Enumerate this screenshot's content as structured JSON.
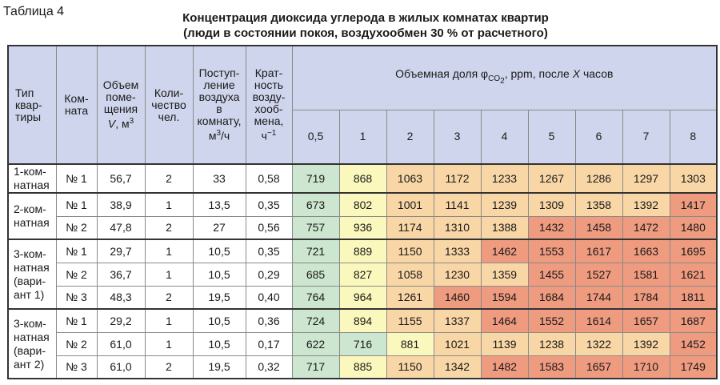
{
  "table_label": "Таблица 4",
  "title_line1": "Концентрация диоксида углерода в жилых комнатах квартир",
  "title_line2": "(люди в состоянии покоя, воздухообмен 30 % от расчетного)",
  "headers": {
    "type": "Тип квар-тиры",
    "room": "Ком-ната",
    "volume": "Объем поме-щения V, м³",
    "people": "Коли-чество чел.",
    "air": "Поступ-ление воздуха в комнату, м³/ч",
    "rate": "Крат-ность возду-хооб-мена, ч⁻¹",
    "fraction": "Объемная доля φCO₂, ppm, после X часов",
    "hours": [
      "0,5",
      "1",
      "2",
      "3",
      "4",
      "5",
      "6",
      "7",
      "8"
    ]
  },
  "groups": [
    {
      "type": "1-ком-натная",
      "rows": [
        {
          "room": "№ 1",
          "volume": "56,7",
          "people": "2",
          "air": "33",
          "rate": "0,58",
          "values": [
            "719",
            "868",
            "1063",
            "1172",
            "1233",
            "1267",
            "1286",
            "1297",
            "1303"
          ],
          "colors": [
            "green",
            "yellow",
            "lorange",
            "lorange",
            "lorange",
            "lorange",
            "lorange",
            "lorange",
            "lorange"
          ]
        }
      ]
    },
    {
      "type": "2-ком-натная",
      "rows": [
        {
          "room": "№ 1",
          "volume": "38,9",
          "people": "1",
          "air": "13,5",
          "rate": "0,35",
          "values": [
            "673",
            "802",
            "1001",
            "1141",
            "1239",
            "1309",
            "1358",
            "1392",
            "1417"
          ],
          "colors": [
            "green",
            "yellow",
            "lorange",
            "lorange",
            "lorange",
            "lorange",
            "lorange",
            "lorange",
            "red"
          ]
        },
        {
          "room": "№ 2",
          "volume": "47,8",
          "people": "2",
          "air": "27",
          "rate": "0,56",
          "values": [
            "757",
            "936",
            "1174",
            "1310",
            "1388",
            "1432",
            "1458",
            "1472",
            "1480"
          ],
          "colors": [
            "green",
            "yellow",
            "lorange",
            "lorange",
            "lorange",
            "red",
            "red",
            "red",
            "red"
          ]
        }
      ]
    },
    {
      "type": "3-ком-натная (вари-ант 1)",
      "rows": [
        {
          "room": "№ 1",
          "volume": "29,7",
          "people": "1",
          "air": "10,5",
          "rate": "0,35",
          "values": [
            "721",
            "889",
            "1150",
            "1333",
            "1462",
            "1553",
            "1617",
            "1663",
            "1695"
          ],
          "colors": [
            "green",
            "yellow",
            "lorange",
            "lorange",
            "red",
            "red",
            "red",
            "red",
            "red"
          ]
        },
        {
          "room": "№ 2",
          "volume": "36,7",
          "people": "1",
          "air": "10,5",
          "rate": "0,29",
          "values": [
            "685",
            "827",
            "1058",
            "1230",
            "1359",
            "1455",
            "1527",
            "1581",
            "1621"
          ],
          "colors": [
            "green",
            "yellow",
            "lorange",
            "lorange",
            "lorange",
            "red",
            "red",
            "red",
            "red"
          ]
        },
        {
          "room": "№ 3",
          "volume": "48,3",
          "people": "2",
          "air": "19,5",
          "rate": "0,40",
          "values": [
            "764",
            "964",
            "1261",
            "1460",
            "1594",
            "1684",
            "1744",
            "1784",
            "1811"
          ],
          "colors": [
            "green",
            "yellow",
            "lorange",
            "red",
            "red",
            "red",
            "red",
            "red",
            "red"
          ]
        }
      ]
    },
    {
      "type": "3-ком-натная (вари-ант 2)",
      "rows": [
        {
          "room": "№ 1",
          "volume": "29,2",
          "people": "1",
          "air": "10,5",
          "rate": "0,36",
          "values": [
            "724",
            "894",
            "1155",
            "1337",
            "1464",
            "1552",
            "1614",
            "1657",
            "1687"
          ],
          "colors": [
            "green",
            "yellow",
            "lorange",
            "lorange",
            "red",
            "red",
            "red",
            "red",
            "red"
          ]
        },
        {
          "room": "№ 2",
          "volume": "61,0",
          "people": "1",
          "air": "10,5",
          "rate": "0,17",
          "values": [
            "622",
            "716",
            "881",
            "1021",
            "1139",
            "1238",
            "1322",
            "1392",
            "1452"
          ],
          "colors": [
            "green",
            "green",
            "yellow",
            "lorange",
            "lorange",
            "lorange",
            "lorange",
            "lorange",
            "red"
          ]
        },
        {
          "room": "№ 3",
          "volume": "61,0",
          "people": "2",
          "air": "19,5",
          "rate": "0,32",
          "values": [
            "717",
            "885",
            "1150",
            "1342",
            "1482",
            "1583",
            "1657",
            "1710",
            "1749"
          ],
          "colors": [
            "green",
            "yellow",
            "lorange",
            "lorange",
            "red",
            "red",
            "red",
            "red",
            "red"
          ]
        }
      ]
    }
  ]
}
